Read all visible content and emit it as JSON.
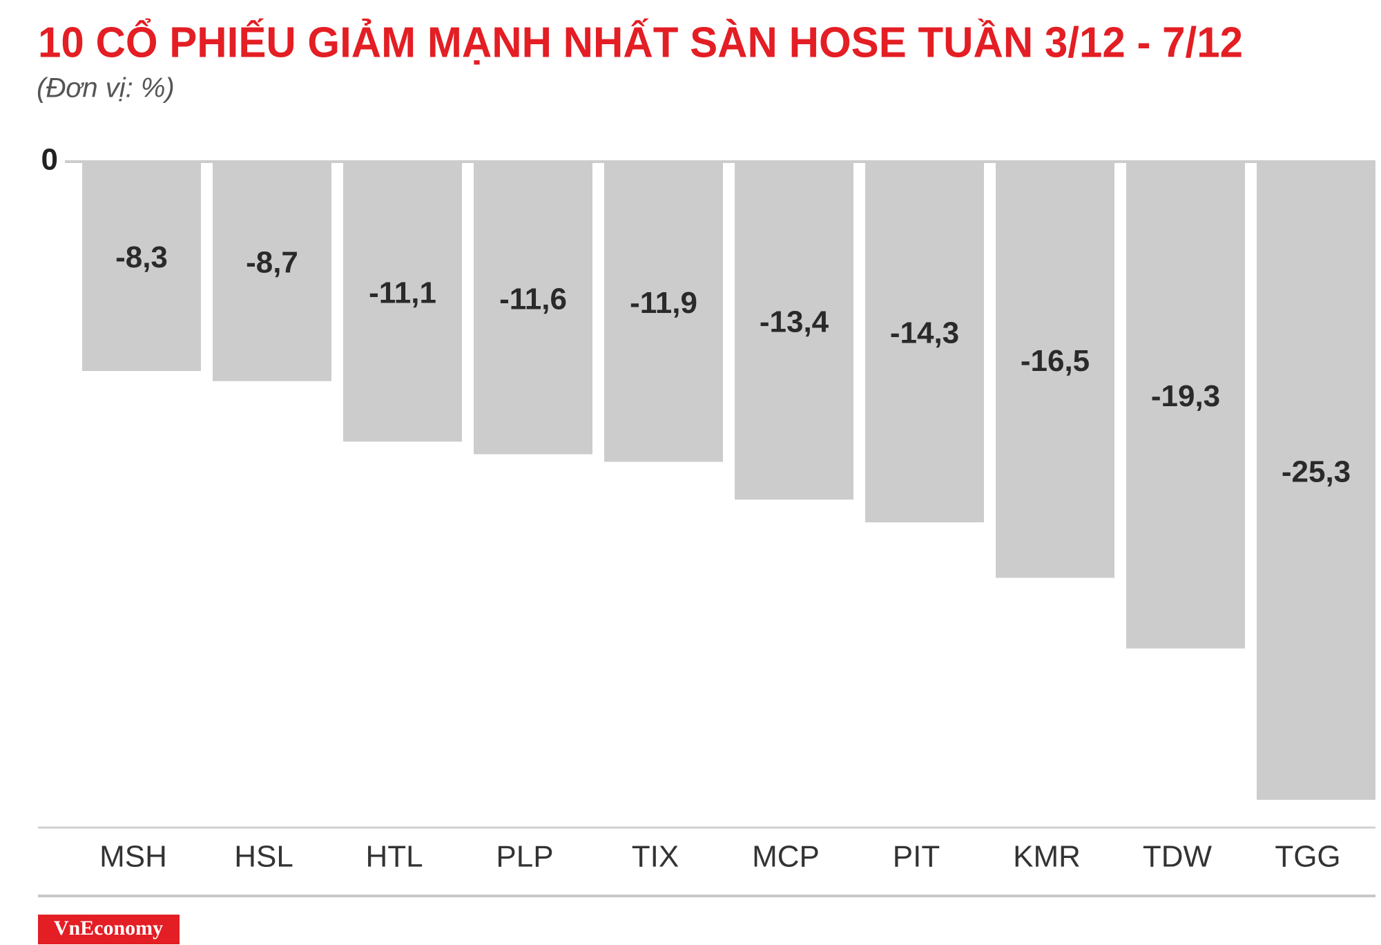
{
  "chart_data": {
    "type": "bar",
    "title": "10 CỔ PHIẾU GIẢM MẠNH NHẤT SÀN HOSE TUẦN 3/12 - 7/12",
    "subtitle": "(Đơn vị: %)",
    "categories": [
      "MSH",
      "HSL",
      "HTL",
      "PLP",
      "TIX",
      "MCP",
      "PIT",
      "KMR",
      "TDW",
      "TGG"
    ],
    "values": [
      -8.3,
      -8.7,
      -11.1,
      -11.6,
      -11.9,
      -13.4,
      -14.3,
      -16.5,
      -19.3,
      -25.3
    ],
    "value_labels": [
      "-8,3",
      "-8,7",
      "-11,1",
      "-11,6",
      "-11,9",
      "-13,4",
      "-14,3",
      "-16,5",
      "-19,3",
      "-25,3"
    ],
    "color": "#cdcccd",
    "ylim": [
      -26.4,
      0
    ],
    "yticks": [
      0
    ],
    "logo": "VnEconomy"
  }
}
